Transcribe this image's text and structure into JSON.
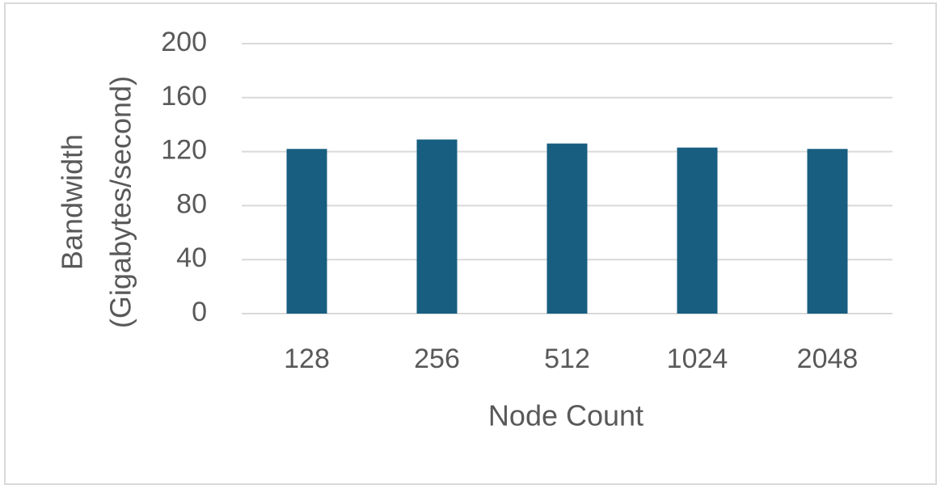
{
  "chart_data": {
    "type": "bar",
    "xlabel": "Node Count",
    "ylabel": [
      "Bandwidth",
      "(Gigabytes/second)"
    ],
    "categories": [
      "128",
      "256",
      "512",
      "1024",
      "2048"
    ],
    "values": [
      122,
      129,
      126,
      123,
      122
    ],
    "color": "#175e80",
    "ylim": [
      0,
      200
    ],
    "yticks": [
      0,
      40,
      80,
      120,
      160,
      200
    ],
    "grid": true
  }
}
